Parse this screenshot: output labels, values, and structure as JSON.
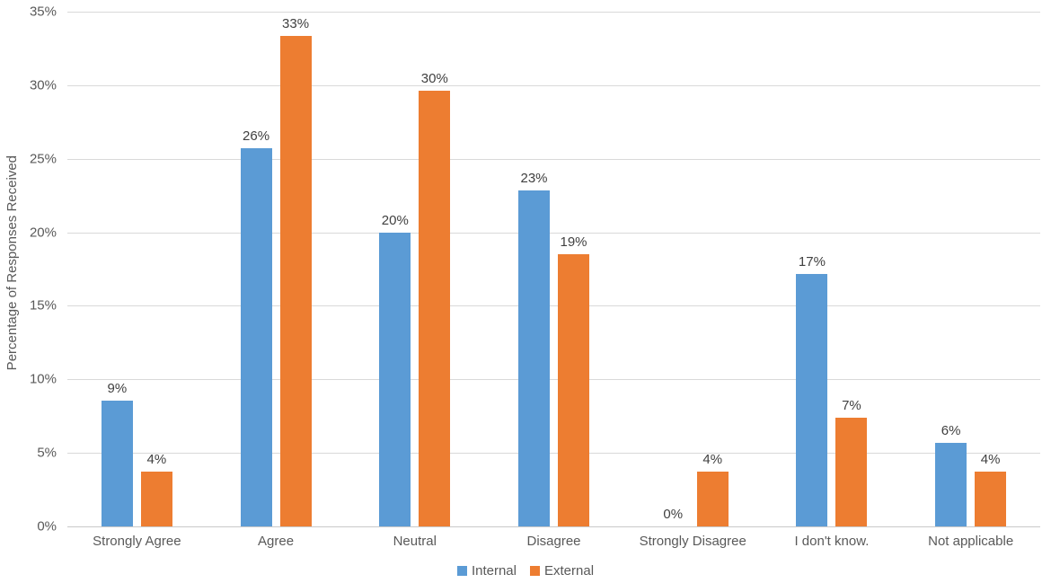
{
  "chart_data": {
    "type": "bar",
    "title": "",
    "ylabel": "Percentage of Responses Received",
    "xlabel": "",
    "ylim": [
      0,
      35
    ],
    "ytick_step": 5,
    "ytick_labels": [
      "0%",
      "5%",
      "10%",
      "15%",
      "20%",
      "25%",
      "30%",
      "35%"
    ],
    "grid": true,
    "legend_position": "bottom-center",
    "categories": [
      "Strongly Agree",
      "Agree",
      "Neutral",
      "Disagree",
      "Strongly Disagree",
      "I don't know.",
      "Not applicable"
    ],
    "series": [
      {
        "name": "Internal",
        "color": "#5B9BD5",
        "values": [
          8.57,
          25.71,
          20.0,
          22.86,
          0,
          17.14,
          5.71
        ],
        "labels": [
          "9%",
          "26%",
          "20%",
          "23%",
          "0%",
          "17%",
          "6%"
        ]
      },
      {
        "name": "External",
        "color": "#ED7D31",
        "values": [
          3.7,
          33.33,
          29.63,
          18.52,
          3.7,
          7.41,
          3.7
        ],
        "labels": [
          "4%",
          "33%",
          "30%",
          "19%",
          "4%",
          "7%",
          "4%"
        ]
      }
    ],
    "colors": {
      "gridline": "#D9D9D9",
      "axis_line": "#C9C9C9",
      "tick_text": "#595959",
      "data_label_text": "#404040"
    }
  }
}
